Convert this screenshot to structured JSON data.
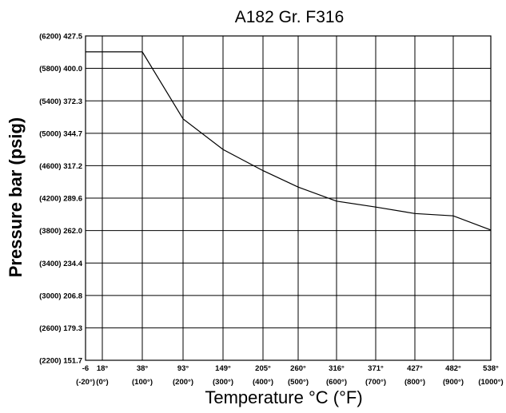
{
  "chart_data": {
    "type": "line",
    "title": "A182 Gr. F316",
    "xlabel": "Temperature °C (°F)",
    "ylabel": "Pressure bar (psig)",
    "grid": true,
    "ylim": [
      151.7,
      427.5
    ],
    "y_ticks": [
      {
        "value": 427.5,
        "label": "(6200) 427.5"
      },
      {
        "value": 400.0,
        "label": "(5800) 400.0"
      },
      {
        "value": 372.3,
        "label": "(5400) 372.3"
      },
      {
        "value": 344.7,
        "label": "(5000) 344.7"
      },
      {
        "value": 317.2,
        "label": "(4600) 317.2"
      },
      {
        "value": 289.6,
        "label": "(4200) 289.6"
      },
      {
        "value": 262.0,
        "label": "(3800) 262.0"
      },
      {
        "value": 234.4,
        "label": "(3400) 234.4"
      },
      {
        "value": 206.8,
        "label": "(3000) 206.8"
      },
      {
        "value": 179.3,
        "label": "(2600) 179.3"
      },
      {
        "value": 151.7,
        "label": "(2200) 151.7"
      }
    ],
    "x_ticks": [
      {
        "c": "-6",
        "f": "(-20°)"
      },
      {
        "c": "18°",
        "f": "(0°)"
      },
      {
        "c": "38°",
        "f": "(100°)"
      },
      {
        "c": "93°",
        "f": "(200°)"
      },
      {
        "c": "149°",
        "f": "(300°)"
      },
      {
        "c": "205°",
        "f": "(400°)"
      },
      {
        "c": "260°",
        "f": "(500°)"
      },
      {
        "c": "316°",
        "f": "(600°)"
      },
      {
        "c": "371°",
        "f": "(700°)"
      },
      {
        "c": "427°",
        "f": "(800°)"
      },
      {
        "c": "482°",
        "f": "(900°)"
      },
      {
        "c": "538°",
        "f": "(1000°)"
      }
    ],
    "series": [
      {
        "x": [
          "-6",
          "38°",
          "93°",
          "149°",
          "205°",
          "260°",
          "316°",
          "371°",
          "427°",
          "482°",
          "538°"
        ],
        "values": [
          414,
          414,
          357,
          331,
          313,
          299,
          287,
          282,
          276.5,
          274.5,
          262.5
        ]
      }
    ]
  }
}
